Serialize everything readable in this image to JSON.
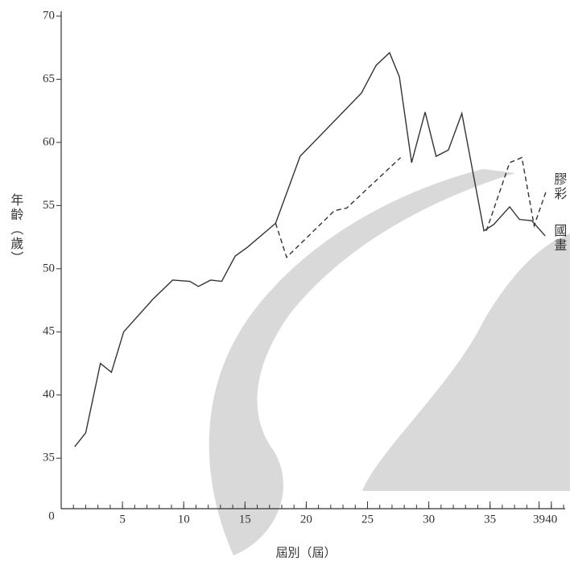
{
  "chart_data": {
    "type": "line",
    "y_label": "年齡（歲）",
    "x_label": "屆別（屆）",
    "origin_label": "0",
    "xlim": [
      0,
      41
    ],
    "ylim": [
      31,
      70
    ],
    "xticks": [
      5,
      10,
      15,
      20,
      25,
      30,
      35,
      39,
      40
    ],
    "xminorticks": [
      1,
      2,
      3,
      4,
      5,
      6,
      7,
      8,
      9,
      10,
      11,
      12,
      13,
      14,
      15,
      16,
      17,
      18,
      19,
      20,
      21,
      22,
      23,
      24,
      25,
      26,
      27,
      28,
      29,
      30,
      31,
      32,
      33,
      34,
      35,
      36,
      37,
      38,
      39,
      40,
      41
    ],
    "yticks": [
      35,
      40,
      45,
      50,
      55,
      60,
      65,
      70
    ],
    "series": [
      {
        "name": "國畫",
        "color": "#333333",
        "dash": false,
        "x": [
          1.1,
          2.0,
          3.2,
          4.1,
          5.1,
          7.5,
          9.1,
          10.5,
          11.2,
          12.2,
          13.1,
          14.2,
          15.2,
          17.5,
          19.5,
          24.5,
          25.7,
          26.8,
          27.6,
          28.6,
          29.7,
          30.6,
          31.6,
          32.7,
          34.5,
          35.3,
          36.6,
          37.4,
          38.4,
          39.5
        ],
        "values": [
          35.9,
          37.0,
          42.5,
          41.8,
          45.0,
          47.6,
          49.1,
          49.0,
          48.6,
          49.1,
          49.0,
          51.0,
          51.7,
          53.6,
          58.9,
          63.9,
          66.1,
          67.1,
          65.2,
          58.4,
          62.4,
          58.9,
          59.4,
          62.3,
          53.0,
          53.5,
          54.9,
          53.9,
          53.8,
          52.6
        ]
      },
      {
        "name": "膠彩",
        "color": "#333333",
        "dash": true,
        "x": [
          17.5,
          18.4,
          22.3,
          23.3,
          27.7,
          null,
          34.7,
          36.6,
          37.6,
          38.6,
          39.6
        ],
        "values": [
          53.6,
          50.9,
          54.6,
          54.8,
          58.8,
          null,
          53.0,
          58.4,
          58.8,
          53.4,
          56.2
        ]
      }
    ]
  }
}
